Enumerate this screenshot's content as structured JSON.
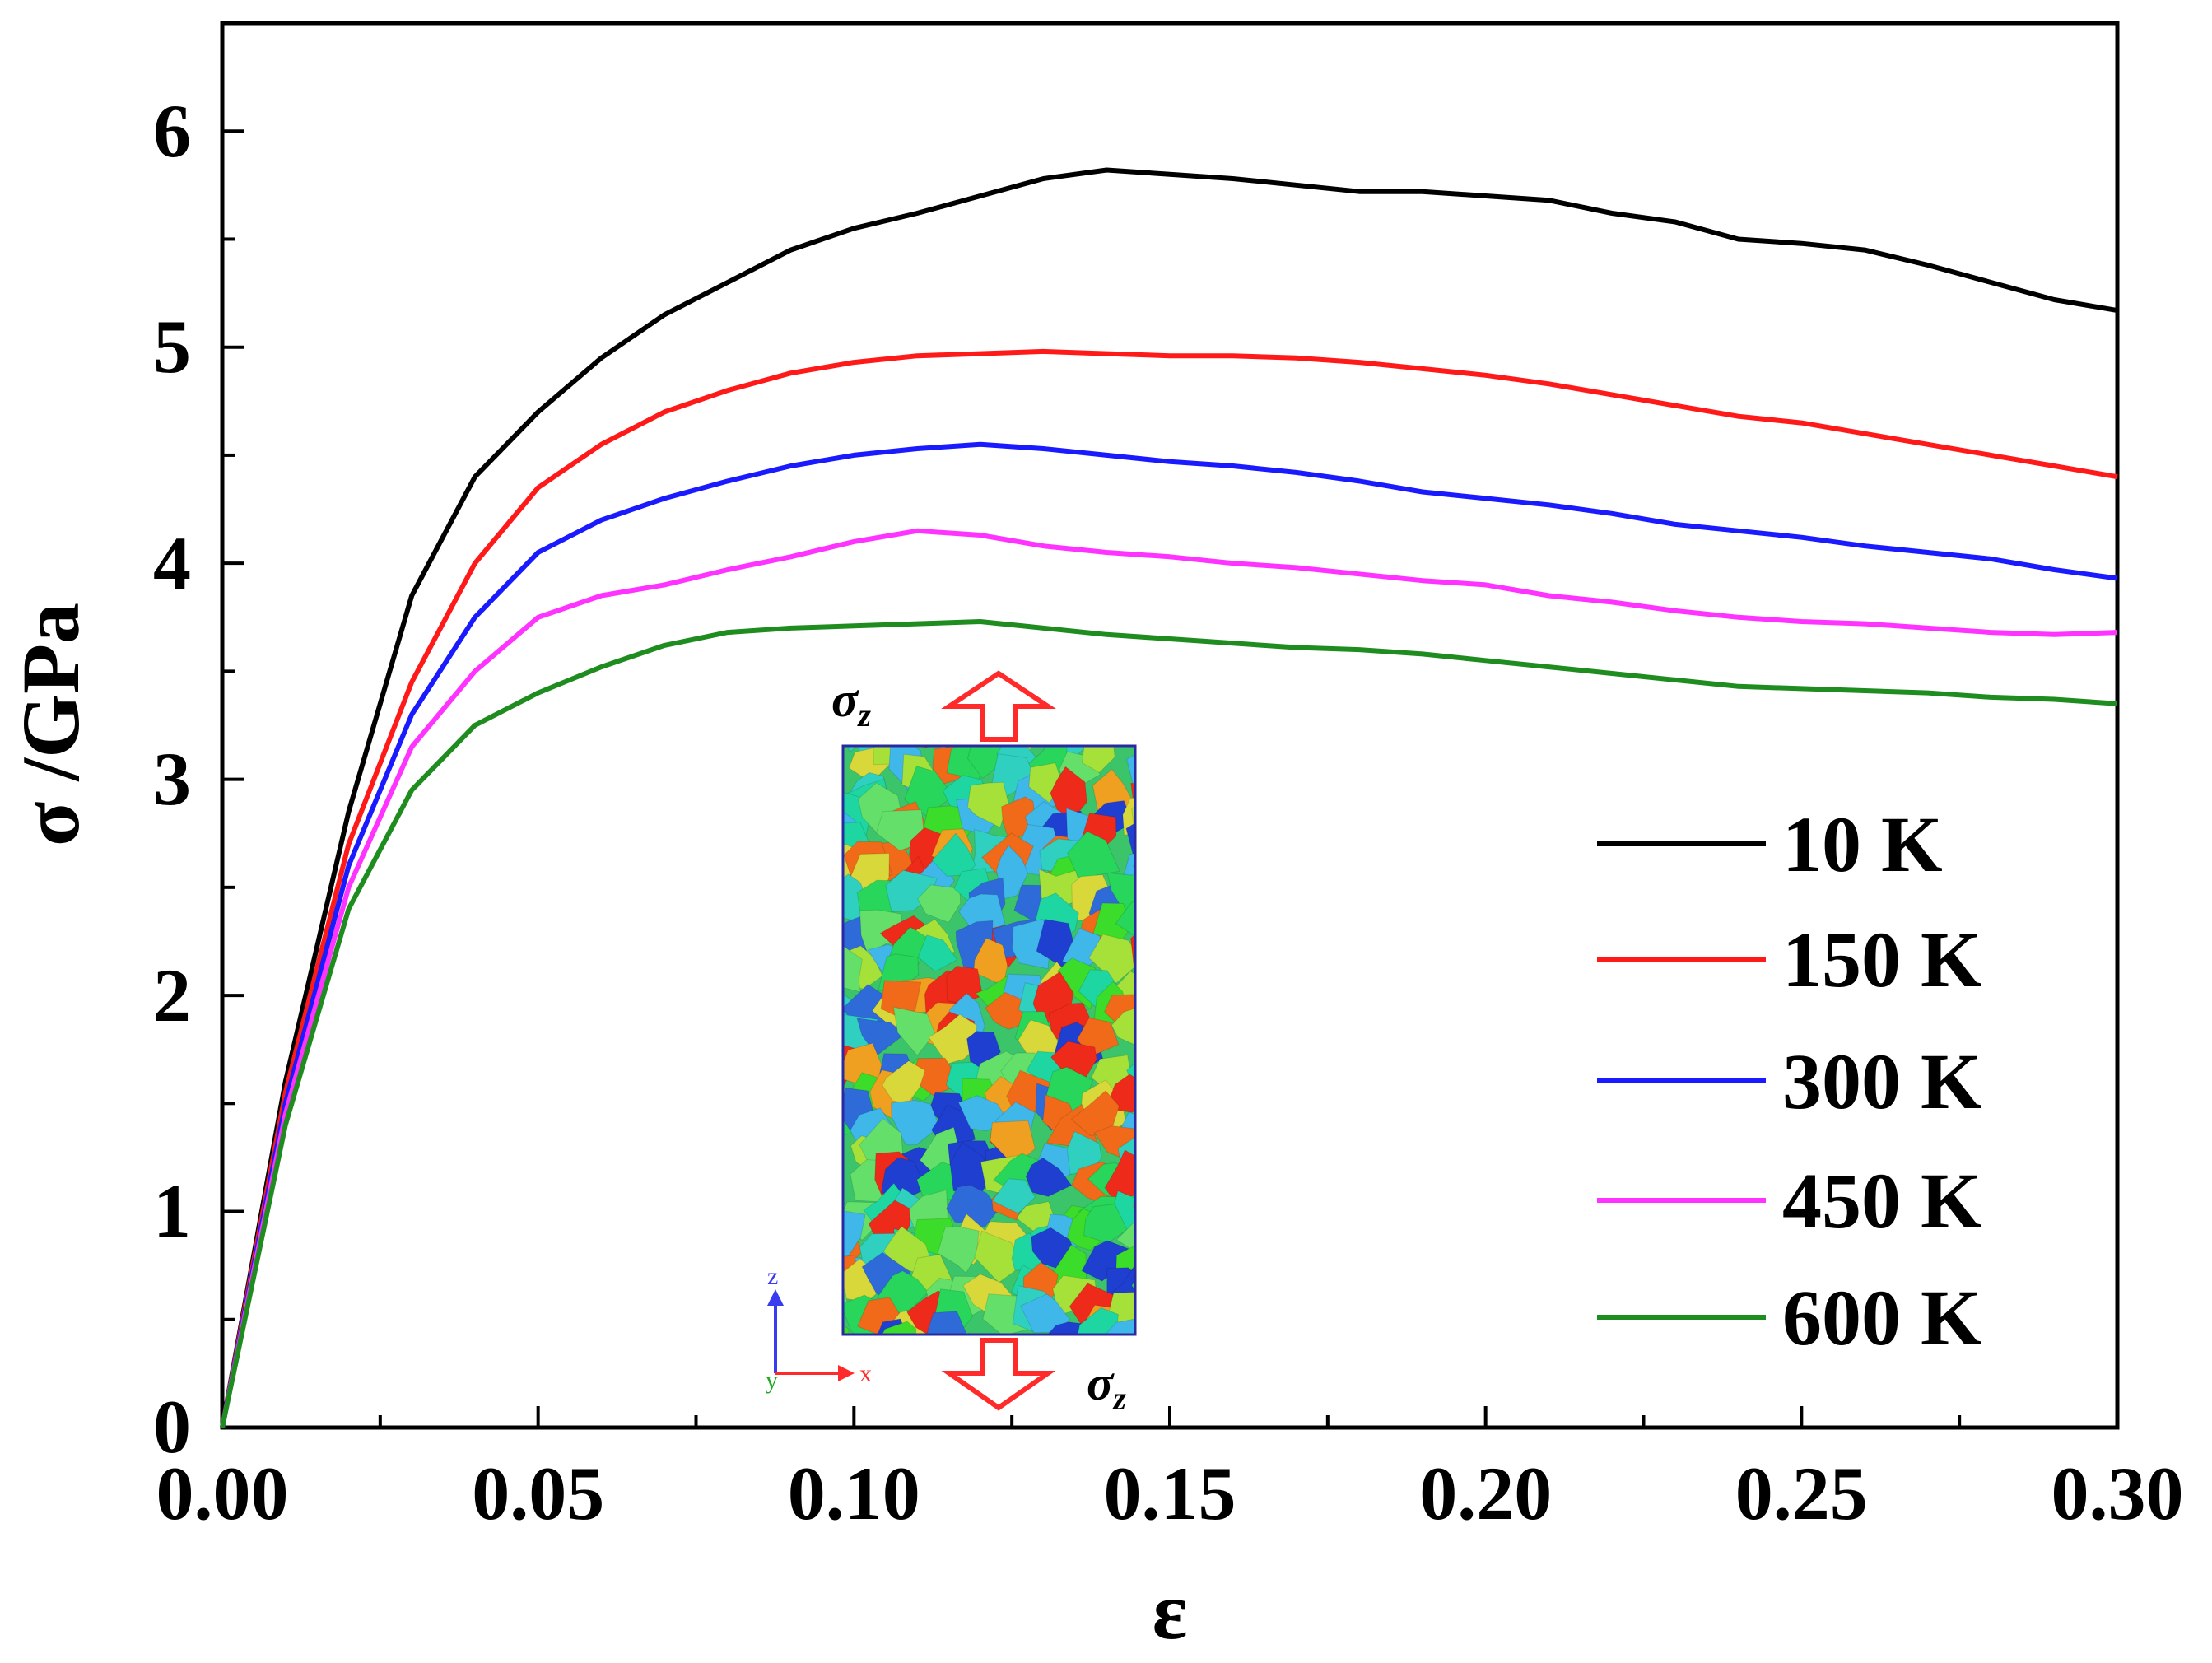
{
  "chart_data": {
    "type": "line",
    "title": "",
    "xlabel": "ε",
    "ylabel": "σ /GPa",
    "xlim": [
      0,
      0.3
    ],
    "ylim": [
      0,
      6.5
    ],
    "x_ticks": [
      "0.00",
      "0.05",
      "0.10",
      "0.15",
      "0.20",
      "0.25",
      "0.30"
    ],
    "y_ticks": [
      "0",
      "1",
      "2",
      "3",
      "4",
      "5",
      "6"
    ],
    "legend_position": "right",
    "series": [
      {
        "name": "10 K",
        "color": "#000000",
        "points": [
          [
            0,
            0
          ],
          [
            0.01,
            1.6
          ],
          [
            0.02,
            2.85
          ],
          [
            0.03,
            3.85
          ],
          [
            0.04,
            4.4
          ],
          [
            0.05,
            4.7
          ],
          [
            0.06,
            4.95
          ],
          [
            0.07,
            5.15
          ],
          [
            0.08,
            5.3
          ],
          [
            0.09,
            5.45
          ],
          [
            0.1,
            5.55
          ],
          [
            0.11,
            5.62
          ],
          [
            0.12,
            5.7
          ],
          [
            0.13,
            5.78
          ],
          [
            0.14,
            5.82
          ],
          [
            0.15,
            5.8
          ],
          [
            0.16,
            5.78
          ],
          [
            0.17,
            5.75
          ],
          [
            0.18,
            5.72
          ],
          [
            0.19,
            5.72
          ],
          [
            0.2,
            5.7
          ],
          [
            0.21,
            5.68
          ],
          [
            0.22,
            5.62
          ],
          [
            0.23,
            5.58
          ],
          [
            0.24,
            5.5
          ],
          [
            0.25,
            5.48
          ],
          [
            0.26,
            5.45
          ],
          [
            0.27,
            5.38
          ],
          [
            0.28,
            5.3
          ],
          [
            0.29,
            5.22
          ],
          [
            0.3,
            5.17
          ]
        ]
      },
      {
        "name": "150 K",
        "color": "#ff1a1a",
        "points": [
          [
            0,
            0
          ],
          [
            0.01,
            1.55
          ],
          [
            0.02,
            2.7
          ],
          [
            0.03,
            3.45
          ],
          [
            0.04,
            4.0
          ],
          [
            0.05,
            4.35
          ],
          [
            0.06,
            4.55
          ],
          [
            0.07,
            4.7
          ],
          [
            0.08,
            4.8
          ],
          [
            0.09,
            4.88
          ],
          [
            0.1,
            4.93
          ],
          [
            0.11,
            4.96
          ],
          [
            0.12,
            4.97
          ],
          [
            0.13,
            4.98
          ],
          [
            0.14,
            4.97
          ],
          [
            0.15,
            4.96
          ],
          [
            0.16,
            4.96
          ],
          [
            0.17,
            4.95
          ],
          [
            0.18,
            4.93
          ],
          [
            0.19,
            4.9
          ],
          [
            0.2,
            4.87
          ],
          [
            0.21,
            4.83
          ],
          [
            0.22,
            4.78
          ],
          [
            0.23,
            4.73
          ],
          [
            0.24,
            4.68
          ],
          [
            0.25,
            4.65
          ],
          [
            0.26,
            4.6
          ],
          [
            0.27,
            4.55
          ],
          [
            0.28,
            4.5
          ],
          [
            0.29,
            4.45
          ],
          [
            0.3,
            4.4
          ]
        ]
      },
      {
        "name": "300 K",
        "color": "#1a1aff",
        "points": [
          [
            0,
            0
          ],
          [
            0.01,
            1.5
          ],
          [
            0.02,
            2.6
          ],
          [
            0.03,
            3.3
          ],
          [
            0.04,
            3.75
          ],
          [
            0.05,
            4.05
          ],
          [
            0.06,
            4.2
          ],
          [
            0.07,
            4.3
          ],
          [
            0.08,
            4.38
          ],
          [
            0.09,
            4.45
          ],
          [
            0.1,
            4.5
          ],
          [
            0.11,
            4.53
          ],
          [
            0.12,
            4.55
          ],
          [
            0.13,
            4.53
          ],
          [
            0.14,
            4.5
          ],
          [
            0.15,
            4.47
          ],
          [
            0.16,
            4.45
          ],
          [
            0.17,
            4.42
          ],
          [
            0.18,
            4.38
          ],
          [
            0.19,
            4.33
          ],
          [
            0.2,
            4.3
          ],
          [
            0.21,
            4.27
          ],
          [
            0.22,
            4.23
          ],
          [
            0.23,
            4.18
          ],
          [
            0.24,
            4.15
          ],
          [
            0.25,
            4.12
          ],
          [
            0.26,
            4.08
          ],
          [
            0.27,
            4.05
          ],
          [
            0.28,
            4.02
          ],
          [
            0.29,
            3.97
          ],
          [
            0.3,
            3.93
          ]
        ]
      },
      {
        "name": "450 K",
        "color": "#ff33ff",
        "points": [
          [
            0,
            0
          ],
          [
            0.01,
            1.45
          ],
          [
            0.02,
            2.5
          ],
          [
            0.03,
            3.15
          ],
          [
            0.04,
            3.5
          ],
          [
            0.05,
            3.75
          ],
          [
            0.06,
            3.85
          ],
          [
            0.07,
            3.9
          ],
          [
            0.08,
            3.97
          ],
          [
            0.09,
            4.03
          ],
          [
            0.1,
            4.1
          ],
          [
            0.11,
            4.15
          ],
          [
            0.12,
            4.13
          ],
          [
            0.13,
            4.08
          ],
          [
            0.14,
            4.05
          ],
          [
            0.15,
            4.03
          ],
          [
            0.16,
            4.0
          ],
          [
            0.17,
            3.98
          ],
          [
            0.18,
            3.95
          ],
          [
            0.19,
            3.92
          ],
          [
            0.2,
            3.9
          ],
          [
            0.21,
            3.85
          ],
          [
            0.22,
            3.82
          ],
          [
            0.23,
            3.78
          ],
          [
            0.24,
            3.75
          ],
          [
            0.25,
            3.73
          ],
          [
            0.26,
            3.72
          ],
          [
            0.27,
            3.7
          ],
          [
            0.28,
            3.68
          ],
          [
            0.29,
            3.67
          ],
          [
            0.3,
            3.68
          ]
        ]
      },
      {
        "name": "600 K",
        "color": "#1f8c1f",
        "points": [
          [
            0,
            0
          ],
          [
            0.01,
            1.4
          ],
          [
            0.02,
            2.4
          ],
          [
            0.03,
            2.95
          ],
          [
            0.04,
            3.25
          ],
          [
            0.05,
            3.4
          ],
          [
            0.06,
            3.52
          ],
          [
            0.07,
            3.62
          ],
          [
            0.08,
            3.68
          ],
          [
            0.09,
            3.7
          ],
          [
            0.1,
            3.71
          ],
          [
            0.11,
            3.72
          ],
          [
            0.12,
            3.73
          ],
          [
            0.13,
            3.7
          ],
          [
            0.14,
            3.67
          ],
          [
            0.15,
            3.65
          ],
          [
            0.16,
            3.63
          ],
          [
            0.17,
            3.61
          ],
          [
            0.18,
            3.6
          ],
          [
            0.19,
            3.58
          ],
          [
            0.2,
            3.55
          ],
          [
            0.21,
            3.52
          ],
          [
            0.22,
            3.49
          ],
          [
            0.23,
            3.46
          ],
          [
            0.24,
            3.43
          ],
          [
            0.25,
            3.42
          ],
          [
            0.26,
            3.41
          ],
          [
            0.27,
            3.4
          ],
          [
            0.28,
            3.38
          ],
          [
            0.29,
            3.37
          ],
          [
            0.3,
            3.35
          ]
        ]
      }
    ]
  },
  "inset": {
    "top_label": "σ",
    "top_sub": "z",
    "bottom_label": "σ",
    "bottom_sub": "z",
    "axis_z": "z",
    "axis_x": "x",
    "axis_y": "y",
    "arrow_color": "#ff2a2a",
    "grain_colors": [
      "#2e6bd9",
      "#1f3fd0",
      "#3fb7e8",
      "#2fd0c0",
      "#27d65a",
      "#3cdc2a",
      "#a6e13a",
      "#d8d83a",
      "#f0a020",
      "#f06a1a",
      "#ee2a1a",
      "#1ed6a2",
      "#64e06a"
    ]
  }
}
